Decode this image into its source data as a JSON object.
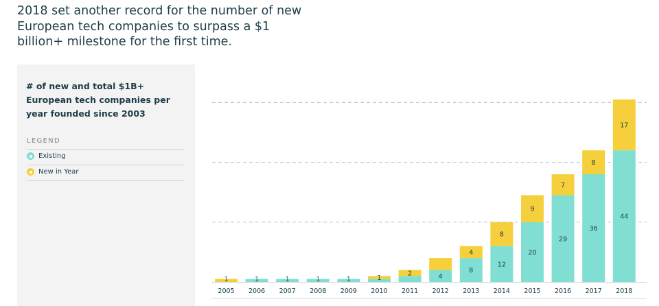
{
  "headline": "2018 set another record for the number of new European tech companies to surpass a $1 billion+ milestone for the first time.",
  "panel": {
    "title": "# of new and total $1B+ European tech companies per year founded since 2003",
    "legend_heading": "LEGEND",
    "legend": [
      {
        "label": "Existing",
        "color": "#80dfd2"
      },
      {
        "label": "New in Year",
        "color": "#f6cf3c"
      }
    ]
  },
  "chart_data": {
    "type": "bar",
    "stacked": true,
    "categories": [
      "2005",
      "2006",
      "2007",
      "2008",
      "2009",
      "2010",
      "2011",
      "2012",
      "2013",
      "2014",
      "2015",
      "2016",
      "2017",
      "2018"
    ],
    "series": [
      {
        "name": "Existing",
        "color": "#80dfd2",
        "values": [
          0,
          1,
          1,
          1,
          1,
          1,
          2,
          4,
          8,
          12,
          20,
          29,
          36,
          44
        ],
        "labels": [
          "",
          "1",
          "1",
          "1",
          "1",
          "",
          "",
          "4",
          "8",
          "12",
          "20",
          "29",
          "36",
          "44"
        ]
      },
      {
        "name": "New in Year",
        "color": "#f6cf3c",
        "values": [
          1,
          0,
          0,
          0,
          0,
          1,
          2,
          4,
          4,
          8,
          9,
          7,
          8,
          17
        ],
        "labels": [
          "1",
          "",
          "",
          "",
          "",
          "1",
          "2",
          "",
          "4",
          "8",
          "9",
          "7",
          "8",
          "17"
        ]
      }
    ],
    "ylim": [
      0,
      61
    ],
    "gridlines": [
      20,
      40,
      60
    ],
    "grid": true,
    "legend_position": "left panel"
  }
}
